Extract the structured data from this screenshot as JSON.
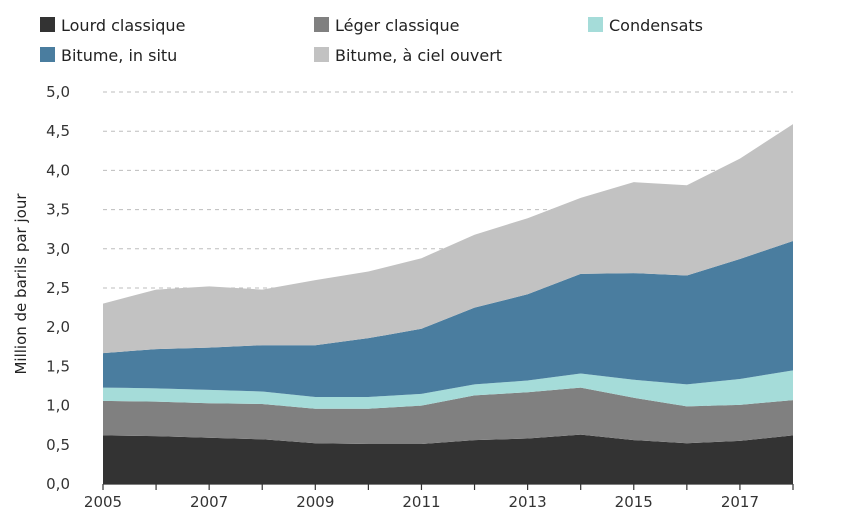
{
  "chart_data": {
    "type": "area",
    "stacked": true,
    "ylabel": "Million de barils par jour",
    "ylim": [
      0,
      5
    ],
    "ytick_labels": [
      "0,0",
      "0,5",
      "1,0",
      "1,5",
      "2,0",
      "2,5",
      "3,0",
      "3,5",
      "4,0",
      "4,5",
      "5,0"
    ],
    "xlim": [
      2005,
      2018
    ],
    "xtick_labels": [
      "2005",
      "2007",
      "2009",
      "2011",
      "2013",
      "2015",
      "2017"
    ],
    "x": [
      2005,
      2006,
      2007,
      2008,
      2009,
      2010,
      2011,
      2012,
      2013,
      2014,
      2015,
      2016,
      2017,
      2018
    ],
    "grid": true,
    "legend_position": "top",
    "series": [
      {
        "name": "Lourd classique",
        "color": "#333333",
        "values": [
          0.62,
          0.61,
          0.59,
          0.57,
          0.52,
          0.51,
          0.51,
          0.56,
          0.58,
          0.63,
          0.56,
          0.52,
          0.55,
          0.62
        ]
      },
      {
        "name": "Léger classique",
        "color": "#808080",
        "values": [
          0.44,
          0.44,
          0.44,
          0.45,
          0.44,
          0.45,
          0.49,
          0.57,
          0.59,
          0.6,
          0.54,
          0.47,
          0.46,
          0.45
        ]
      },
      {
        "name": "Condensats",
        "color": "#a5dcd9",
        "values": [
          0.17,
          0.17,
          0.17,
          0.16,
          0.15,
          0.15,
          0.15,
          0.14,
          0.15,
          0.18,
          0.23,
          0.28,
          0.33,
          0.38
        ]
      },
      {
        "name": "Bitume, in situ",
        "color": "#4a7d9f",
        "values": [
          0.44,
          0.5,
          0.54,
          0.59,
          0.66,
          0.75,
          0.83,
          0.98,
          1.1,
          1.27,
          1.36,
          1.39,
          1.53,
          1.65
        ]
      },
      {
        "name": "Bitume, à ciel ouvert",
        "color": "#c2c2c2",
        "values": [
          0.63,
          0.76,
          0.78,
          0.71,
          0.83,
          0.85,
          0.9,
          0.93,
          0.97,
          0.97,
          1.16,
          1.15,
          1.28,
          1.49
        ]
      }
    ]
  }
}
